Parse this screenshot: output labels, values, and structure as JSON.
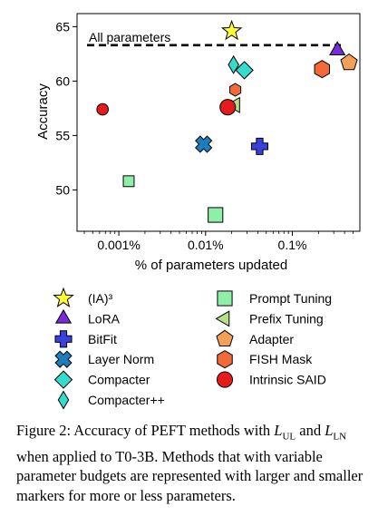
{
  "chart_data": {
    "type": "scatter",
    "xlabel": "% of parameters updated",
    "ylabel": "Accuracy",
    "x_scale": "log",
    "x_ticks": [
      {
        "value": 0.001,
        "label": "0.001%"
      },
      {
        "value": 0.01,
        "label": "0.01%"
      },
      {
        "value": 0.1,
        "label": "0.1%"
      }
    ],
    "y_ticks": [
      {
        "value": 50,
        "label": "50"
      },
      {
        "value": 55,
        "label": "55"
      },
      {
        "value": 60,
        "label": "60"
      },
      {
        "value": 65,
        "label": "65"
      }
    ],
    "xlim": [
      0.00033,
      0.6
    ],
    "ylim": [
      46.2,
      66.2
    ],
    "grid": false,
    "reference_line": {
      "label": "All parameters",
      "y": 63.3
    },
    "points": [
      {
        "method": "(IA)³",
        "shape": "star",
        "color": "#ffff33",
        "x": 0.02,
        "y": 64.6,
        "size": "large"
      },
      {
        "method": "LoRA",
        "shape": "triangle-up",
        "color": "#7b2adb",
        "x": 0.33,
        "y": 62.8,
        "size": "large"
      },
      {
        "method": "BitFit",
        "shape": "plus",
        "color": "#3a3fe0",
        "x": 0.042,
        "y": 54.0,
        "size": "large"
      },
      {
        "method": "Layer Norm",
        "shape": "x",
        "color": "#1e7dbf",
        "x": 0.0095,
        "y": 54.2,
        "size": "large"
      },
      {
        "method": "Compacter",
        "shape": "diamond",
        "color": "#33dccb",
        "x": 0.028,
        "y": 61.0,
        "size": "large"
      },
      {
        "method": "Compacter++",
        "shape": "thin-diamond",
        "color": "#33dccb",
        "x": 0.021,
        "y": 61.5,
        "size": "large"
      },
      {
        "method": "Prompt Tuning",
        "shape": "square",
        "color": "#8ef0a8",
        "x": 0.0013,
        "y": 50.8,
        "size": "small"
      },
      {
        "method": "Prompt Tuning",
        "shape": "square",
        "color": "#8ef0a8",
        "x": 0.013,
        "y": 47.7,
        "size": "large"
      },
      {
        "method": "Prefix Tuning",
        "shape": "triangle-left",
        "color": "#b4e08a",
        "x": 0.022,
        "y": 57.8,
        "size": "large"
      },
      {
        "method": "Adapter",
        "shape": "pentagon",
        "color": "#f5a155",
        "x": 0.45,
        "y": 61.7,
        "size": "large"
      },
      {
        "method": "FISH Mask",
        "shape": "hexagon",
        "color": "#f26a38",
        "x": 0.022,
        "y": 59.2,
        "size": "small"
      },
      {
        "method": "FISH Mask",
        "shape": "hexagon",
        "color": "#f26a38",
        "x": 0.22,
        "y": 61.1,
        "size": "large"
      },
      {
        "method": "Intrinsic SAID",
        "shape": "circle",
        "color": "#e61b1b",
        "x": 0.00065,
        "y": 57.4,
        "size": "small"
      },
      {
        "method": "Intrinsic SAID",
        "shape": "circle",
        "color": "#e61b1b",
        "x": 0.018,
        "y": 57.6,
        "size": "large"
      }
    ],
    "legend": {
      "placement": "below",
      "columns": [
        [
          {
            "label": "(IA)³",
            "shape": "star",
            "color": "#ffff33"
          },
          {
            "label": "LoRA",
            "shape": "triangle-up",
            "color": "#7b2adb"
          },
          {
            "label": "BitFit",
            "shape": "plus",
            "color": "#3a3fe0"
          },
          {
            "label": "Layer Norm",
            "shape": "x",
            "color": "#1e7dbf"
          },
          {
            "label": "Compacter",
            "shape": "diamond",
            "color": "#33dccb"
          },
          {
            "label": "Compacter++",
            "shape": "thin-diamond",
            "color": "#33dccb"
          }
        ],
        [
          {
            "label": "Prompt Tuning",
            "shape": "square",
            "color": "#8ef0a8"
          },
          {
            "label": "Prefix Tuning",
            "shape": "triangle-left",
            "color": "#b4e08a"
          },
          {
            "label": "Adapter",
            "shape": "pentagon",
            "color": "#f5a155"
          },
          {
            "label": "FISH Mask",
            "shape": "hexagon",
            "color": "#f26a38"
          },
          {
            "label": "Intrinsic SAID",
            "shape": "circle",
            "color": "#e61b1b"
          }
        ]
      ]
    }
  },
  "caption": {
    "prefix": "Figure 2: Accuracy of PEFT methods with ",
    "l_ul_main": "L",
    "l_ul_sub": "UL",
    "middle": " and ",
    "l_ln_main": "L",
    "l_ln_sub": "LN",
    "suffix": " when applied to T0-3B. Methods that with variable parameter budgets are represented with larger and smaller markers for more or less parameters."
  }
}
